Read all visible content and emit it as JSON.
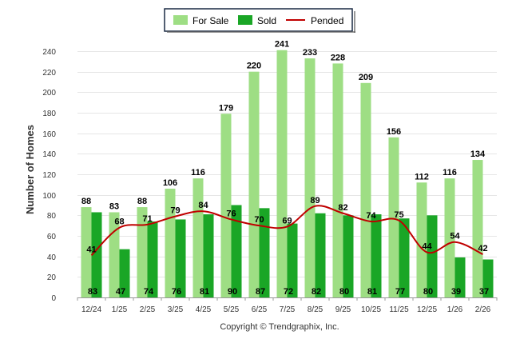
{
  "chart_data": {
    "type": "bar",
    "title": "",
    "xlabel": "",
    "ylabel": "Number of Homes",
    "ylim": [
      0,
      240
    ],
    "ytick_step": 20,
    "grid": true,
    "legend_position": "top-center",
    "categories": [
      "12/24",
      "1/25",
      "2/25",
      "3/25",
      "4/25",
      "5/25",
      "6/25",
      "7/25",
      "8/25",
      "9/25",
      "10/25",
      "11/25",
      "12/25",
      "1/26",
      "2/26"
    ],
    "series": [
      {
        "name": "For Sale",
        "type": "bar",
        "color": "#9ede84",
        "values": [
          88,
          83,
          88,
          106,
          116,
          179,
          220,
          241,
          233,
          228,
          209,
          156,
          112,
          116,
          134
        ]
      },
      {
        "name": "Sold",
        "type": "bar",
        "color": "#1aa626",
        "values": [
          83,
          47,
          74,
          76,
          81,
          90,
          87,
          72,
          82,
          80,
          81,
          77,
          80,
          39,
          37
        ]
      },
      {
        "name": "Pended",
        "type": "line",
        "color": "#c00000",
        "values": [
          41,
          68,
          71,
          79,
          84,
          76,
          70,
          69,
          89,
          82,
          74,
          75,
          44,
          54,
          42
        ]
      }
    ],
    "copyright": "Copyright © Trendgraphix, Inc."
  }
}
